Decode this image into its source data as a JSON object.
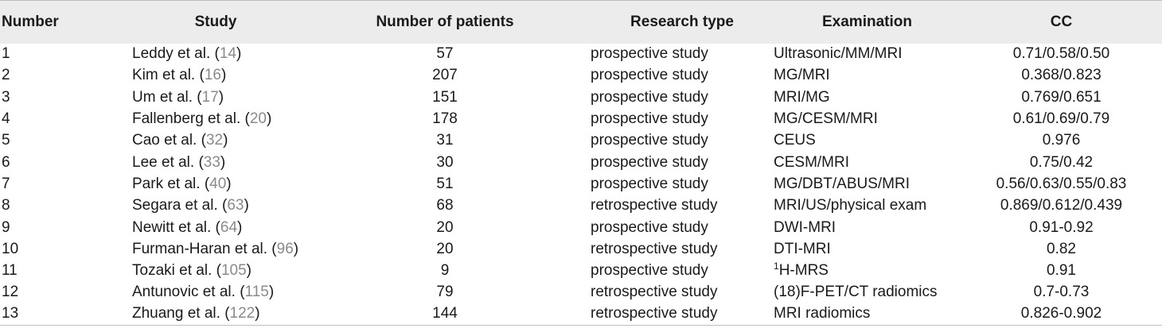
{
  "headers": {
    "number": "Number",
    "study": "Study",
    "patients": "Number of patients",
    "type": "Research type",
    "exam": "Examination",
    "cc": "CC"
  },
  "rows": [
    {
      "number": "1",
      "author": "Leddy et al. (",
      "ref": "14",
      "close": ")",
      "patients": "57",
      "type": "prospective study",
      "exam_sup": "",
      "exam": "Ultrasonic/MM/MRI",
      "cc": "0.71/0.58/0.50"
    },
    {
      "number": "2",
      "author": "Kim et al. (",
      "ref": "16",
      "close": ")",
      "patients": "207",
      "type": "prospective study",
      "exam_sup": "",
      "exam": "MG/MRI",
      "cc": "0.368/0.823"
    },
    {
      "number": "3",
      "author": "Um et al. (",
      "ref": "17",
      "close": ")",
      "patients": "151",
      "type": "prospective study",
      "exam_sup": "",
      "exam": "MRI/MG",
      "cc": "0.769/0.651"
    },
    {
      "number": "4",
      "author": "Fallenberg et al. (",
      "ref": "20",
      "close": ")",
      "patients": "178",
      "type": "prospective study",
      "exam_sup": "",
      "exam": "MG/CESM/MRI",
      "cc": "0.61/0.69/0.79"
    },
    {
      "number": "5",
      "author": "Cao et al. (",
      "ref": "32",
      "close": ")",
      "patients": "31",
      "type": "prospective study",
      "exam_sup": "",
      "exam": "CEUS",
      "cc": "0.976"
    },
    {
      "number": "6",
      "author": "Lee et al. (",
      "ref": "33",
      "close": ")",
      "patients": "30",
      "type": "prospective study",
      "exam_sup": "",
      "exam": "CESM/MRI",
      "cc": "0.75/0.42"
    },
    {
      "number": "7",
      "author": "Park et al. (",
      "ref": "40",
      "close": ")",
      "patients": "51",
      "type": "prospective study",
      "exam_sup": "",
      "exam": "MG/DBT/ABUS/MRI",
      "cc": "0.56/0.63/0.55/0.83"
    },
    {
      "number": "8",
      "author": "Segara et al. (",
      "ref": "63",
      "close": ")",
      "patients": "68",
      "type": "retrospective study",
      "exam_sup": "",
      "exam": "MRI/US/physical exam",
      "cc": "0.869/0.612/0.439"
    },
    {
      "number": "9",
      "author": "Newitt et al. (",
      "ref": "64",
      "close": ")",
      "patients": "20",
      "type": "prospective study",
      "exam_sup": "",
      "exam": "DWI-MRI",
      "cc": "0.91-0.92"
    },
    {
      "number": "10",
      "author": "Furman-Haran et al. (",
      "ref": "96",
      "close": ")",
      "patients": "20",
      "type": "retrospective study",
      "exam_sup": "",
      "exam": "DTI-MRI",
      "cc": "0.82"
    },
    {
      "number": "11",
      "author": "Tozaki et al. (",
      "ref": "105",
      "close": ")",
      "patients": "9",
      "type": "prospective study",
      "exam_sup": "1",
      "exam": "H-MRS",
      "cc": "0.91"
    },
    {
      "number": "12",
      "author": "Antunovic et al. (",
      "ref": "115",
      "close": ")",
      "patients": "79",
      "type": "retrospective study",
      "exam_sup": "",
      "exam": "(18)F-PET/CT radiomics",
      "cc": "0.7-0.73"
    },
    {
      "number": "13",
      "author": "Zhuang et al. (",
      "ref": "122",
      "close": ")",
      "patients": "144",
      "type": "retrospective study",
      "exam_sup": "",
      "exam": "MRI radiomics",
      "cc": "0.826-0.902"
    }
  ]
}
